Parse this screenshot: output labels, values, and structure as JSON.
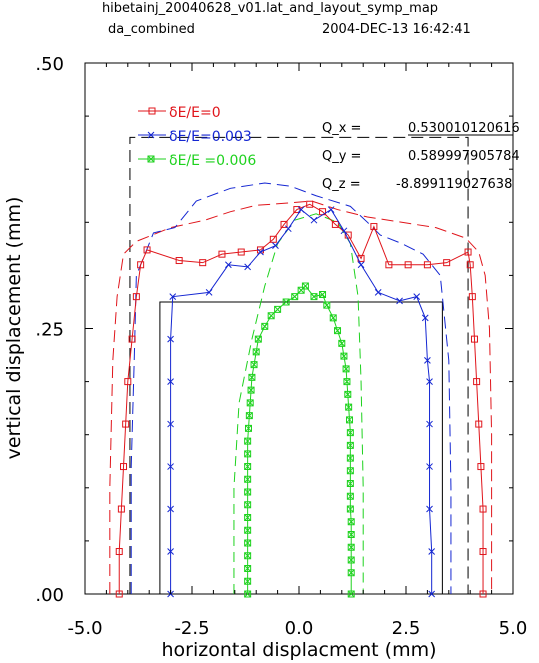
{
  "header": {
    "line1": "hibetainj_20040628_v01.lat_and_layout_symp_map",
    "line2_left": "da_combined",
    "line2_right": "2004-DEC-13  16:42:41"
  },
  "colors": {
    "de0": "#e0151b",
    "de003": "#1426d2",
    "de006": "#1ed21e",
    "axes": "#000000"
  },
  "tunes": [
    {
      "label": "Q_x  =",
      "value": "0.530010120616"
    },
    {
      "label": "Q_y  =",
      "value": "0.589997905784"
    },
    {
      "label": "Q_z  =",
      "value": "-8.899119027638"
    }
  ],
  "chart_data": {
    "type": "line",
    "xlabel": "horizontal displacment (mm)",
    "ylabel": "vertical displacement (mm)",
    "xlim": [
      -5.0,
      5.0
    ],
    "ylim": [
      0.0,
      0.5
    ],
    "xticks": [
      "-5.0",
      "-2.5",
      "0.0",
      "2.5",
      "5.0"
    ],
    "yticks": [
      ".00",
      ".25",
      ".50"
    ],
    "series": [
      {
        "name": "δE/E=0",
        "color": "#e0151b",
        "marker": "square",
        "points": [
          [
            -4.2,
            0.0
          ],
          [
            -4.2,
            0.04
          ],
          [
            -4.15,
            0.08
          ],
          [
            -4.1,
            0.12
          ],
          [
            -4.05,
            0.16
          ],
          [
            -4.0,
            0.2
          ],
          [
            -3.9,
            0.24
          ],
          [
            -3.8,
            0.28
          ],
          [
            -3.7,
            0.31
          ],
          [
            -3.55,
            0.324
          ],
          [
            -2.8,
            0.314
          ],
          [
            -2.25,
            0.312
          ],
          [
            -1.8,
            0.32
          ],
          [
            -1.35,
            0.322
          ],
          [
            -0.9,
            0.324
          ],
          [
            -0.6,
            0.334
          ],
          [
            -0.35,
            0.348
          ],
          [
            -0.05,
            0.362
          ],
          [
            0.25,
            0.367
          ],
          [
            0.55,
            0.36
          ],
          [
            0.85,
            0.348
          ],
          [
            1.15,
            0.338
          ],
          [
            1.45,
            0.316
          ],
          [
            1.75,
            0.346
          ],
          [
            2.1,
            0.31
          ],
          [
            2.55,
            0.31
          ],
          [
            3.0,
            0.31
          ],
          [
            3.45,
            0.312
          ],
          [
            3.95,
            0.322
          ],
          [
            4.0,
            0.31
          ],
          [
            4.05,
            0.28
          ],
          [
            4.1,
            0.24
          ],
          [
            4.15,
            0.2
          ],
          [
            4.2,
            0.16
          ],
          [
            4.25,
            0.12
          ],
          [
            4.3,
            0.08
          ],
          [
            4.3,
            0.04
          ],
          [
            4.3,
            0.0
          ]
        ]
      },
      {
        "name": "δE/E=0.003",
        "color": "#1426d2",
        "marker": "x",
        "points": [
          [
            -3.0,
            0.0
          ],
          [
            -3.0,
            0.04
          ],
          [
            -3.0,
            0.08
          ],
          [
            -3.0,
            0.12
          ],
          [
            -3.0,
            0.16
          ],
          [
            -3.0,
            0.2
          ],
          [
            -3.0,
            0.24
          ],
          [
            -2.95,
            0.28
          ],
          [
            -2.1,
            0.284
          ],
          [
            -1.65,
            0.31
          ],
          [
            -1.2,
            0.308
          ],
          [
            -0.9,
            0.322
          ],
          [
            -0.55,
            0.328
          ],
          [
            -0.25,
            0.344
          ],
          [
            0.05,
            0.362
          ],
          [
            0.35,
            0.352
          ],
          [
            0.75,
            0.362
          ],
          [
            1.05,
            0.342
          ],
          [
            1.45,
            0.31
          ],
          [
            1.85,
            0.284
          ],
          [
            2.35,
            0.276
          ],
          [
            2.75,
            0.28
          ],
          [
            2.95,
            0.26
          ],
          [
            3.0,
            0.22
          ],
          [
            3.05,
            0.2
          ],
          [
            3.05,
            0.16
          ],
          [
            3.05,
            0.12
          ],
          [
            3.05,
            0.08
          ],
          [
            3.1,
            0.04
          ],
          [
            3.1,
            0.0
          ]
        ]
      },
      {
        "name": "δE/E =0.006",
        "color": "#1ed21e",
        "marker": "boxx",
        "points": [
          [
            -1.2,
            0.0
          ],
          [
            -1.2,
            0.012
          ],
          [
            -1.2,
            0.024
          ],
          [
            -1.2,
            0.036
          ],
          [
            -1.2,
            0.048
          ],
          [
            -1.2,
            0.06
          ],
          [
            -1.2,
            0.072
          ],
          [
            -1.2,
            0.084
          ],
          [
            -1.2,
            0.096
          ],
          [
            -1.2,
            0.108
          ],
          [
            -1.2,
            0.12
          ],
          [
            -1.2,
            0.132
          ],
          [
            -1.2,
            0.144
          ],
          [
            -1.18,
            0.156
          ],
          [
            -1.16,
            0.168
          ],
          [
            -1.14,
            0.18
          ],
          [
            -1.12,
            0.192
          ],
          [
            -1.1,
            0.204
          ],
          [
            -1.05,
            0.216
          ],
          [
            -1.0,
            0.228
          ],
          [
            -0.95,
            0.24
          ],
          [
            -0.8,
            0.252
          ],
          [
            -0.65,
            0.262
          ],
          [
            -0.5,
            0.268
          ],
          [
            -0.3,
            0.275
          ],
          [
            -0.1,
            0.28
          ],
          [
            0.05,
            0.286
          ],
          [
            0.15,
            0.29
          ],
          [
            0.35,
            0.28
          ],
          [
            0.55,
            0.282
          ],
          [
            0.65,
            0.272
          ],
          [
            0.8,
            0.26
          ],
          [
            0.9,
            0.248
          ],
          [
            1.0,
            0.236
          ],
          [
            1.05,
            0.224
          ],
          [
            1.1,
            0.212
          ],
          [
            1.12,
            0.2
          ],
          [
            1.14,
            0.188
          ],
          [
            1.16,
            0.176
          ],
          [
            1.18,
            0.164
          ],
          [
            1.2,
            0.152
          ],
          [
            1.2,
            0.14
          ],
          [
            1.2,
            0.128
          ],
          [
            1.2,
            0.116
          ],
          [
            1.2,
            0.104
          ],
          [
            1.2,
            0.092
          ],
          [
            1.2,
            0.08
          ],
          [
            1.22,
            0.068
          ],
          [
            1.22,
            0.056
          ],
          [
            1.22,
            0.044
          ],
          [
            1.22,
            0.032
          ],
          [
            1.22,
            0.02
          ],
          [
            1.22,
            0.0
          ]
        ]
      }
    ],
    "envelopes": [
      {
        "color": "#e0151b",
        "dash": "12,6",
        "points": [
          [
            -4.42,
            0.0
          ],
          [
            -4.42,
            0.1
          ],
          [
            -4.35,
            0.22
          ],
          [
            -4.25,
            0.28
          ],
          [
            -4.1,
            0.32
          ],
          [
            -3.8,
            0.332
          ],
          [
            -3.0,
            0.345
          ],
          [
            -2.2,
            0.352
          ],
          [
            -1.6,
            0.36
          ],
          [
            -1.0,
            0.366
          ],
          [
            -0.3,
            0.368
          ],
          [
            0.3,
            0.37
          ],
          [
            0.9,
            0.362
          ],
          [
            1.6,
            0.355
          ],
          [
            2.4,
            0.35
          ],
          [
            3.2,
            0.345
          ],
          [
            3.9,
            0.335
          ],
          [
            4.2,
            0.322
          ],
          [
            4.35,
            0.3
          ],
          [
            4.45,
            0.25
          ],
          [
            4.5,
            0.15
          ],
          [
            4.5,
            0.0
          ]
        ]
      },
      {
        "color": "#1426d2",
        "dash": "12,6",
        "points": [
          [
            -3.92,
            0.0
          ],
          [
            -3.92,
            0.12
          ],
          [
            -3.85,
            0.22
          ],
          [
            -3.8,
            0.3
          ],
          [
            -3.4,
            0.34
          ],
          [
            -2.9,
            0.345
          ],
          [
            -2.4,
            0.37
          ],
          [
            -1.6,
            0.382
          ],
          [
            -0.8,
            0.387
          ],
          [
            -0.2,
            0.384
          ],
          [
            0.4,
            0.375
          ],
          [
            1.2,
            0.365
          ],
          [
            1.6,
            0.35
          ],
          [
            1.9,
            0.338
          ],
          [
            2.4,
            0.33
          ],
          [
            2.9,
            0.32
          ],
          [
            3.3,
            0.3
          ],
          [
            3.5,
            0.22
          ],
          [
            3.55,
            0.1
          ],
          [
            3.55,
            0.0
          ]
        ]
      },
      {
        "color": "#1ed21e",
        "dash": "10,6",
        "points": [
          [
            -1.52,
            0.0
          ],
          [
            -1.52,
            0.1
          ],
          [
            -1.4,
            0.18
          ],
          [
            -1.1,
            0.24
          ],
          [
            -0.8,
            0.29
          ],
          [
            -0.5,
            0.33
          ],
          [
            -0.1,
            0.352
          ],
          [
            0.4,
            0.358
          ],
          [
            0.9,
            0.35
          ],
          [
            1.2,
            0.33
          ],
          [
            1.38,
            0.28
          ],
          [
            1.45,
            0.2
          ],
          [
            1.5,
            0.1
          ],
          [
            1.5,
            0.0
          ]
        ]
      }
    ],
    "boxes": [
      {
        "style": "dashed",
        "x": [
          -3.95,
          3.95
        ],
        "y": [
          0.0,
          0.43
        ]
      },
      {
        "style": "solid",
        "x": [
          -3.25,
          3.35
        ],
        "y": [
          0.0,
          0.275
        ]
      }
    ]
  }
}
